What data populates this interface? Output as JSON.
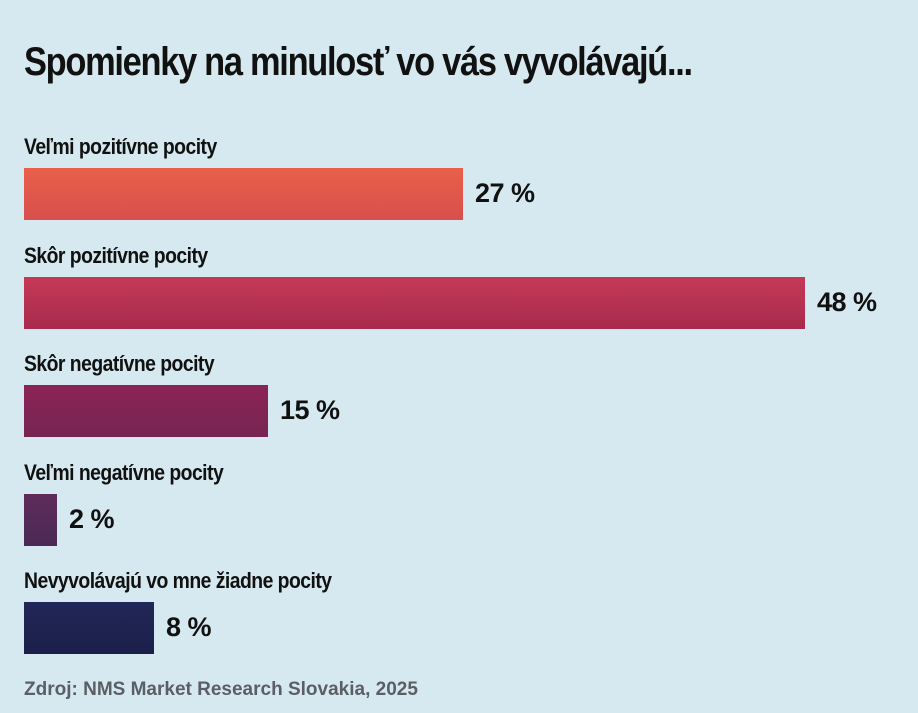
{
  "title": "Spomienky na minulosť vo vás vyvolávajú...",
  "source": "Zdroj: NMS Market Research Slovakia, 2025",
  "chart_data": {
    "type": "bar",
    "orientation": "horizontal",
    "unit": "%",
    "categories": [
      "Veľmi pozitívne pocity",
      "Skôr pozitívne pocity",
      "Skôr negatívne pocity",
      "Veľmi negatívne pocity",
      "Nevyvolávajú vo mne žiadne pocity"
    ],
    "values": [
      27,
      48,
      15,
      2,
      8
    ],
    "value_labels": [
      "27 %",
      "48 %",
      "15 %",
      "2 %",
      "8 %"
    ],
    "colors": [
      [
        "#e9604a",
        "#d84f4d"
      ],
      [
        "#c43a56",
        "#a82a4e"
      ],
      [
        "#8b2456",
        "#752552"
      ],
      [
        "#5e2b5a",
        "#4b2a55"
      ],
      [
        "#212756",
        "#1b1f4a"
      ]
    ],
    "xlim": [
      0,
      48
    ],
    "grid": false,
    "legend": "none"
  }
}
